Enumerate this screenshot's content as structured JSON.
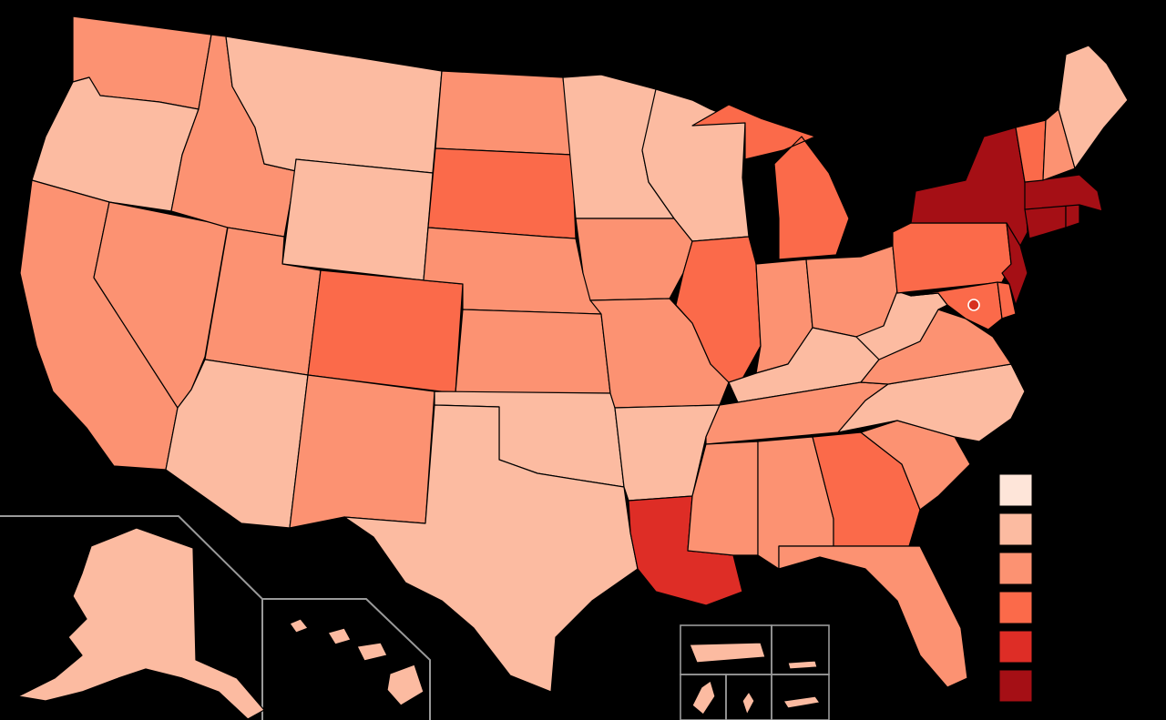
{
  "map": {
    "kind": "choropleth",
    "region": "United States",
    "levels": 6,
    "palette": [
      "#fee5d9",
      "#fcbba1",
      "#fc9272",
      "#fb6a4a",
      "#de2d26",
      "#a50f15"
    ],
    "background": "#000000",
    "border_color": "#000000",
    "inset_line_color": "#9a9a9a",
    "legend_placement": "bottom-right",
    "legend_labels": []
  },
  "state_levels": {
    "WA": 3,
    "OR": 2,
    "CA": 3,
    "NV": 3,
    "ID": 3,
    "MT": 2,
    "WY": 2,
    "UT": 3,
    "AZ": 2,
    "CO": 4,
    "NM": 3,
    "ND": 3,
    "SD": 4,
    "NE": 3,
    "KS": 3,
    "OK": 2,
    "TX": 2,
    "MN": 2,
    "IA": 3,
    "MO": 3,
    "AR": 2,
    "LA": 5,
    "WI": 2,
    "IL": 4,
    "MI": 4,
    "IN": 3,
    "OH": 3,
    "KY": 2,
    "TN": 3,
    "MS": 3,
    "AL": 3,
    "GA": 4,
    "FL": 3,
    "SC": 3,
    "NC": 2,
    "VA": 3,
    "WV": 2,
    "PA": 4,
    "NY": 6,
    "NJ": 6,
    "DE": 4,
    "MD": 4,
    "DC": 5,
    "CT": 6,
    "RI": 6,
    "MA": 6,
    "VT": 4,
    "NH": 3,
    "ME": 2,
    "AK": 2,
    "HI": 2,
    "PR": 2,
    "GU": 2,
    "VI": 2,
    "MP": 2
  }
}
